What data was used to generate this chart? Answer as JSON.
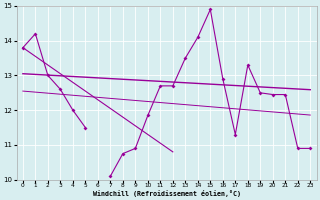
{
  "x": [
    0,
    1,
    2,
    3,
    4,
    5,
    6,
    7,
    8,
    9,
    10,
    11,
    12,
    13,
    14,
    15,
    16,
    17,
    18,
    19,
    20,
    21,
    22,
    23
  ],
  "zigzag": [
    13.8,
    14.2,
    13.0,
    12.6,
    12.0,
    11.5,
    null,
    10.1,
    10.75,
    10.9,
    11.85,
    12.7,
    12.7,
    13.5,
    14.1,
    14.9,
    12.9,
    11.3,
    13.3,
    12.5,
    12.45,
    12.45,
    10.9,
    10.9
  ],
  "trend_upper": [
    13.05,
    13.03,
    13.01,
    12.99,
    12.97,
    12.95,
    12.93,
    12.91,
    12.89,
    12.87,
    12.85,
    12.83,
    12.81,
    12.79,
    12.77,
    12.75,
    12.73,
    12.71,
    12.69,
    12.67,
    12.65,
    12.63,
    12.61,
    12.59
  ],
  "trend_lower": [
    12.55,
    12.52,
    12.49,
    12.46,
    12.43,
    12.4,
    12.37,
    12.34,
    12.31,
    12.28,
    12.25,
    12.22,
    12.19,
    12.16,
    12.13,
    12.1,
    12.07,
    12.04,
    12.01,
    11.98,
    11.95,
    11.92,
    11.89,
    11.86
  ],
  "declining": [
    13.8,
    13.55,
    13.3,
    13.05,
    12.8,
    12.55,
    12.3,
    12.05,
    11.8,
    11.55,
    11.3,
    11.05,
    10.8,
    null,
    null,
    null,
    null,
    null,
    null,
    null,
    null,
    null,
    null,
    null
  ],
  "color": "#990099",
  "background": "#d8eef0",
  "ylim": [
    10,
    15
  ],
  "xlim": [
    -0.5,
    23.5
  ],
  "yticks": [
    10,
    11,
    12,
    13,
    14,
    15
  ],
  "xticks": [
    0,
    1,
    2,
    3,
    4,
    5,
    6,
    7,
    8,
    9,
    10,
    11,
    12,
    13,
    14,
    15,
    16,
    17,
    18,
    19,
    20,
    21,
    22,
    23
  ],
  "xlabel": "Windchill (Refroidissement éolien,°C)"
}
